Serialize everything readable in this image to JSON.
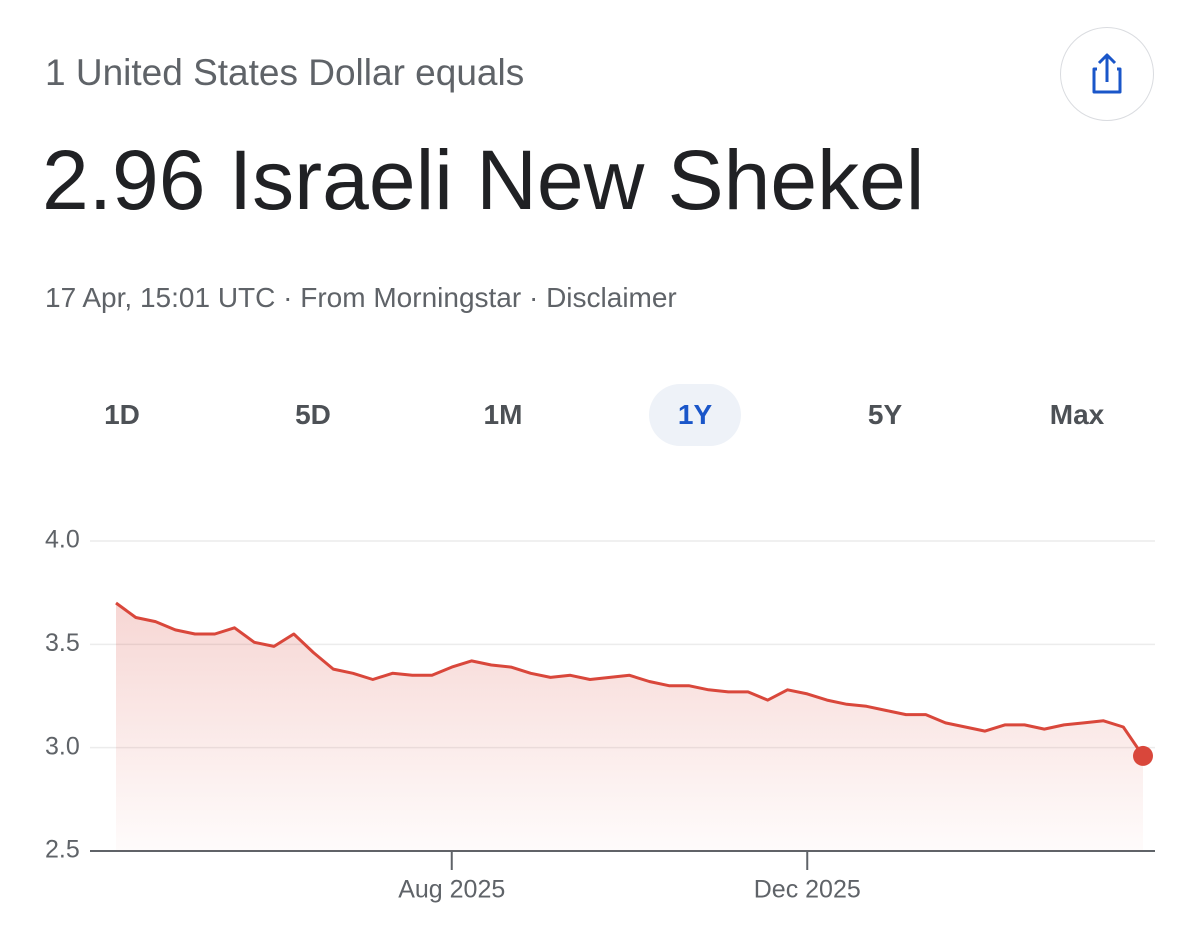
{
  "header": {
    "prefix": "1 United States Dollar equals",
    "headline": "2.96 Israeli New Shekel",
    "timestamp": "17 Apr, 15:01 UTC",
    "source": "From Morningstar",
    "disclaimer": "Disclaimer"
  },
  "ranges": {
    "options": [
      "1D",
      "5D",
      "1M",
      "1Y",
      "5Y",
      "Max"
    ],
    "selected": "1Y"
  },
  "chart_data": {
    "type": "line",
    "categories": [
      null,
      null,
      null,
      null,
      null,
      null,
      null,
      null,
      null,
      null,
      null,
      null,
      null,
      null,
      null,
      null,
      null,
      "Aug 2025",
      null,
      null,
      null,
      null,
      null,
      null,
      null,
      null,
      null,
      null,
      null,
      null,
      null,
      null,
      null,
      null,
      null,
      "Dec 2025",
      null,
      null,
      null,
      null,
      null,
      null,
      null,
      null,
      null,
      null,
      null,
      null,
      null,
      null,
      null,
      null,
      null
    ],
    "values": [
      3.7,
      3.63,
      3.61,
      3.57,
      3.55,
      3.55,
      3.58,
      3.51,
      3.49,
      3.55,
      3.46,
      3.38,
      3.36,
      3.33,
      3.36,
      3.35,
      3.35,
      3.39,
      3.42,
      3.4,
      3.39,
      3.36,
      3.34,
      3.35,
      3.33,
      3.34,
      3.35,
      3.32,
      3.3,
      3.3,
      3.28,
      3.27,
      3.27,
      3.23,
      3.28,
      3.26,
      3.23,
      3.21,
      3.2,
      3.18,
      3.16,
      3.16,
      3.12,
      3.1,
      3.08,
      3.11,
      3.11,
      3.09,
      3.11,
      3.12,
      3.13,
      3.1,
      2.96
    ],
    "color": "#d9473b",
    "ylim": [
      2.5,
      4.0
    ],
    "yticks": [
      2.5,
      {
        "value": 3,
        "label": "3.0"
      },
      3.5,
      {
        "value": 4,
        "label": "4.0"
      }
    ],
    "grid": true
  }
}
